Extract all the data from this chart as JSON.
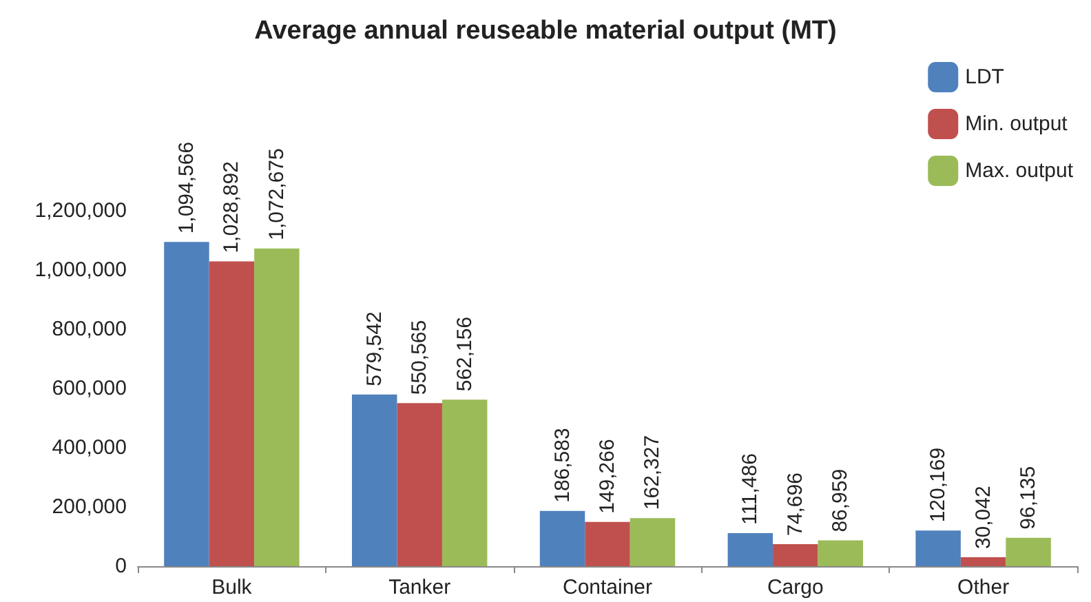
{
  "chart_data": {
    "type": "bar",
    "title": "Average annual reuseable material output (MT)",
    "categories": [
      "Bulk",
      "Tanker",
      "Container",
      "Cargo",
      "Other"
    ],
    "series": [
      {
        "name": "LDT",
        "color": "#4f81bd",
        "values": [
          1094566,
          579542,
          186583,
          111486,
          120169
        ],
        "value_labels": [
          "1,094,566",
          "579,542",
          "186,583",
          "111,486",
          "120,169"
        ]
      },
      {
        "name": "Min. output",
        "color": "#c0504d",
        "values": [
          1028892,
          550565,
          149266,
          74696,
          30042
        ],
        "value_labels": [
          "1,028,892",
          "550,565",
          "149,266",
          "74,696",
          "30,042"
        ]
      },
      {
        "name": "Max. output",
        "color": "#9bbb59",
        "values": [
          1072675,
          562156,
          162327,
          86959,
          96135
        ],
        "value_labels": [
          "1,072,675",
          "562,156",
          "162,327",
          "86,959",
          "96,135"
        ]
      }
    ],
    "ylim": [
      0,
      1200000
    ],
    "yticks": [
      0,
      {
        "value": 200000,
        "label": "200,000"
      },
      {
        "value": 400000,
        "label": "400,000"
      },
      {
        "value": 600000,
        "label": "600,000"
      },
      {
        "value": 800000,
        "label": "800,000"
      },
      {
        "value": 1000000,
        "label": "1,000,000"
      },
      {
        "value": 1200000,
        "label": "1,200,000"
      }
    ],
    "grid": false,
    "legend": "top right"
  }
}
